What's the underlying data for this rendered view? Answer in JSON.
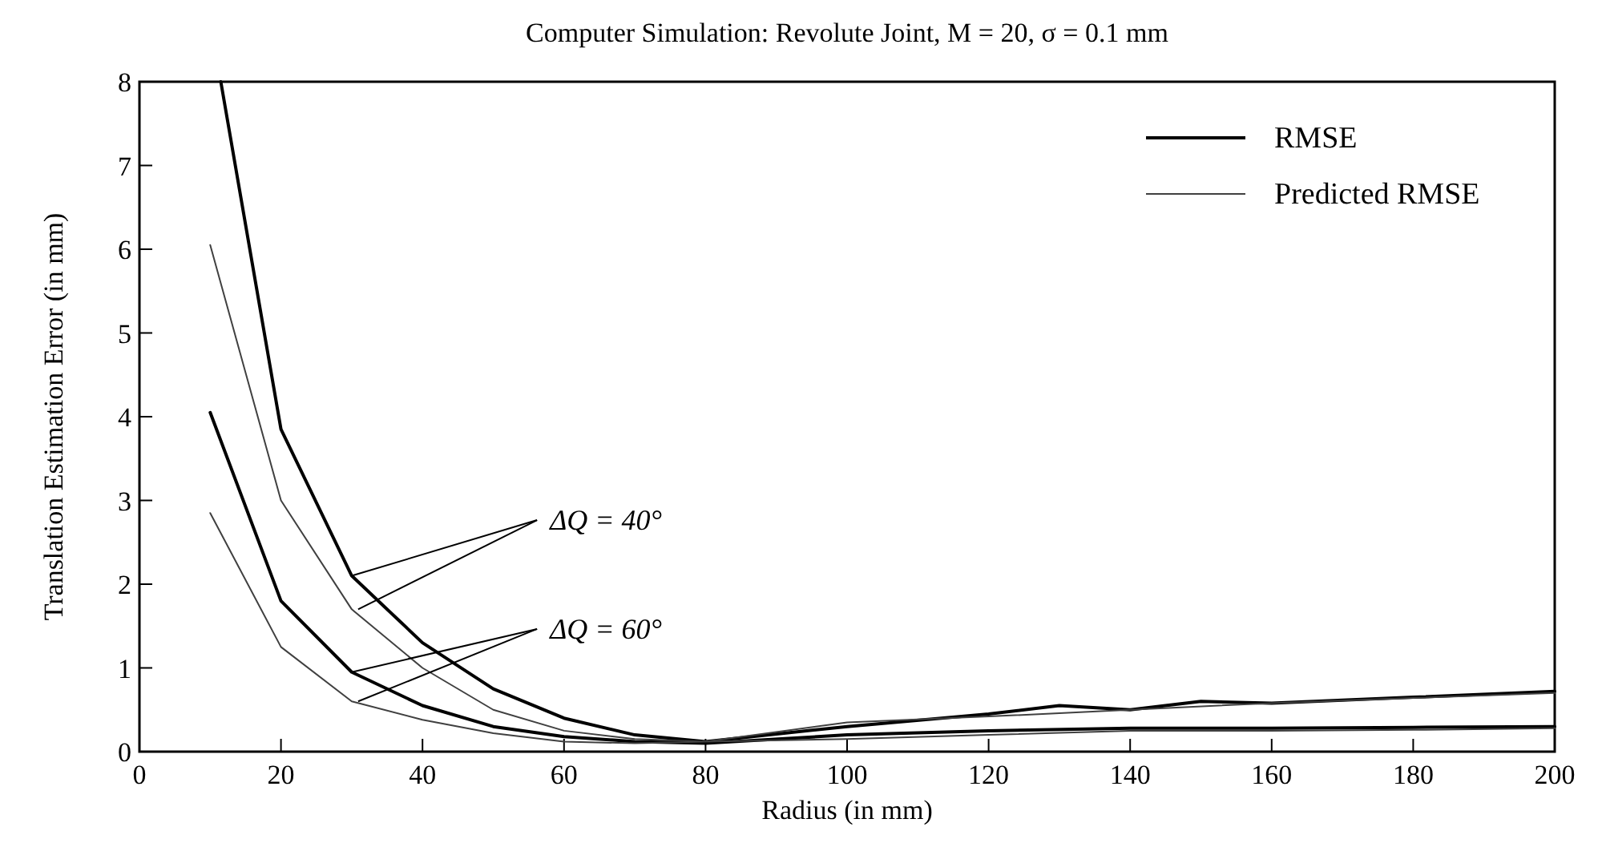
{
  "chart_data": {
    "type": "line",
    "title": "Computer Simulation: Revolute Joint, M = 20, σ = 0.1 mm",
    "xlabel": "Radius (in mm)",
    "ylabel": "Translation Estimation Error (in mm)",
    "xlim": [
      0,
      200
    ],
    "ylim": [
      0,
      8
    ],
    "xticks": [
      0,
      20,
      40,
      60,
      80,
      100,
      120,
      140,
      160,
      180,
      200
    ],
    "yticks": [
      0,
      1,
      2,
      3,
      4,
      5,
      6,
      7,
      8
    ],
    "grid": false,
    "legend": "top right",
    "marker": "none",
    "line_style": "solid",
    "annotations": [
      {
        "text": "ΔQ = 40°",
        "x": 30,
        "y": 2.1
      },
      {
        "text": "ΔQ = 60°",
        "x": 30,
        "y": 0.95
      }
    ],
    "series": [
      {
        "name": "RMSE",
        "color": "#000000",
        "x": [
          11.5,
          20,
          30,
          40,
          50,
          60,
          70,
          80,
          100,
          120,
          130,
          140,
          150,
          160,
          180,
          200
        ],
        "values": [
          8,
          3.85,
          2.1,
          1.3,
          0.75,
          0.4,
          0.2,
          0.12,
          0.3,
          0.45,
          0.55,
          0.5,
          0.6,
          0.58,
          0.65,
          0.72
        ]
      },
      {
        "name": "Predicted RMSE",
        "color": "#404040",
        "x": [
          10,
          20,
          30,
          40,
          50,
          60,
          70,
          80,
          100,
          120,
          140,
          160,
          180,
          200
        ],
        "values": [
          6.05,
          3.0,
          1.7,
          1.0,
          0.5,
          0.25,
          0.15,
          0.12,
          0.35,
          0.42,
          0.5,
          0.58,
          0.64,
          0.7
        ]
      },
      {
        "color": "#000000",
        "x": [
          10,
          20,
          30,
          40,
          50,
          60,
          70,
          80,
          100,
          120,
          140,
          160,
          180,
          200
        ],
        "values": [
          4.05,
          1.8,
          0.95,
          0.55,
          0.3,
          0.18,
          0.12,
          0.1,
          0.2,
          0.25,
          0.28,
          0.28,
          0.29,
          0.3
        ]
      },
      {
        "color": "#404040",
        "x": [
          10,
          20,
          30,
          40,
          50,
          60,
          70,
          80,
          100,
          120,
          140,
          160,
          180,
          200
        ],
        "values": [
          2.85,
          1.25,
          0.6,
          0.38,
          0.22,
          0.12,
          0.1,
          0.12,
          0.15,
          0.2,
          0.25,
          0.25,
          0.26,
          0.28
        ]
      }
    ]
  }
}
